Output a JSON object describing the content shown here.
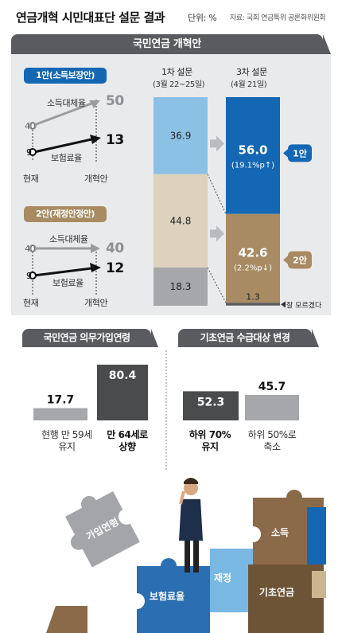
{
  "title": "연금개혁 시민대표단 설문 결과",
  "unit": "단위: %",
  "source": "자료: 국회 연금특위 공론화위원회",
  "colors": {
    "dark_gray": "#5a5b5e",
    "accent_blue": "#1467b3",
    "light_blue": "#8cc1e6",
    "tan": "#a88b62",
    "light_tan": "#ddd2bd",
    "mid_gray": "#a5a7aa",
    "dark_box": "#4a4b4d"
  },
  "pension_reform": {
    "header": "국민연금 개혁안",
    "plan1": {
      "label": "1안(소득보장안)",
      "rows": [
        {
          "name": "소득대체율",
          "current": 40,
          "proposed": 50
        },
        {
          "name": "보험료율",
          "current": 9,
          "proposed": 13
        }
      ]
    },
    "plan2": {
      "label": "2안(재정안정안)",
      "rows": [
        {
          "name": "소득대체율",
          "current": 40,
          "proposed": 40
        },
        {
          "name": "보험료율",
          "current": 9,
          "proposed": 12
        }
      ]
    },
    "x_current": "현재",
    "x_proposed": "개혁안"
  },
  "chart_data": [
    {
      "type": "bar",
      "stacked": true,
      "categories": [
        "1차 설문",
        "3차 설문"
      ],
      "category_dates": [
        "(3월 22~25일)",
        "(4월 21일)"
      ],
      "series": [
        {
          "name": "1안",
          "values": [
            36.9,
            56.0
          ],
          "change": "(19.1%p↑)"
        },
        {
          "name": "2안",
          "values": [
            44.8,
            42.6
          ],
          "change": "(2.2%p↓)"
        },
        {
          "name": "잘 모르겠다",
          "values": [
            18.3,
            1.3
          ]
        }
      ],
      "legend": [
        "1안",
        "2안",
        "잘 모르겠다"
      ],
      "ylim": [
        0,
        100
      ]
    },
    {
      "type": "bar",
      "title": "국민연금 의무가입연령",
      "categories": [
        "현행 만 59세 유지",
        "만 64세로 상향"
      ],
      "values": [
        17.7,
        80.4
      ]
    },
    {
      "type": "bar",
      "title": "기초연금 수급대상 변경",
      "categories": [
        "하위 70% 유지",
        "하위 50%로 축소"
      ],
      "values": [
        52.3,
        45.7
      ]
    }
  ],
  "labels": {
    "age_cat1_line1": "현행 만 59세",
    "age_cat1_line2": "유지",
    "age_cat2_line1": "만 64세로",
    "age_cat2_line2": "상향",
    "basic_cat1_line1": "하위 70%",
    "basic_cat1_line2": "유지",
    "basic_cat2_line1": "하위 50%로",
    "basic_cat2_line2": "축소"
  },
  "puzzle": {
    "pieces": [
      "가입연령",
      "보험료율",
      "재정",
      "소득",
      "기초연금"
    ]
  }
}
